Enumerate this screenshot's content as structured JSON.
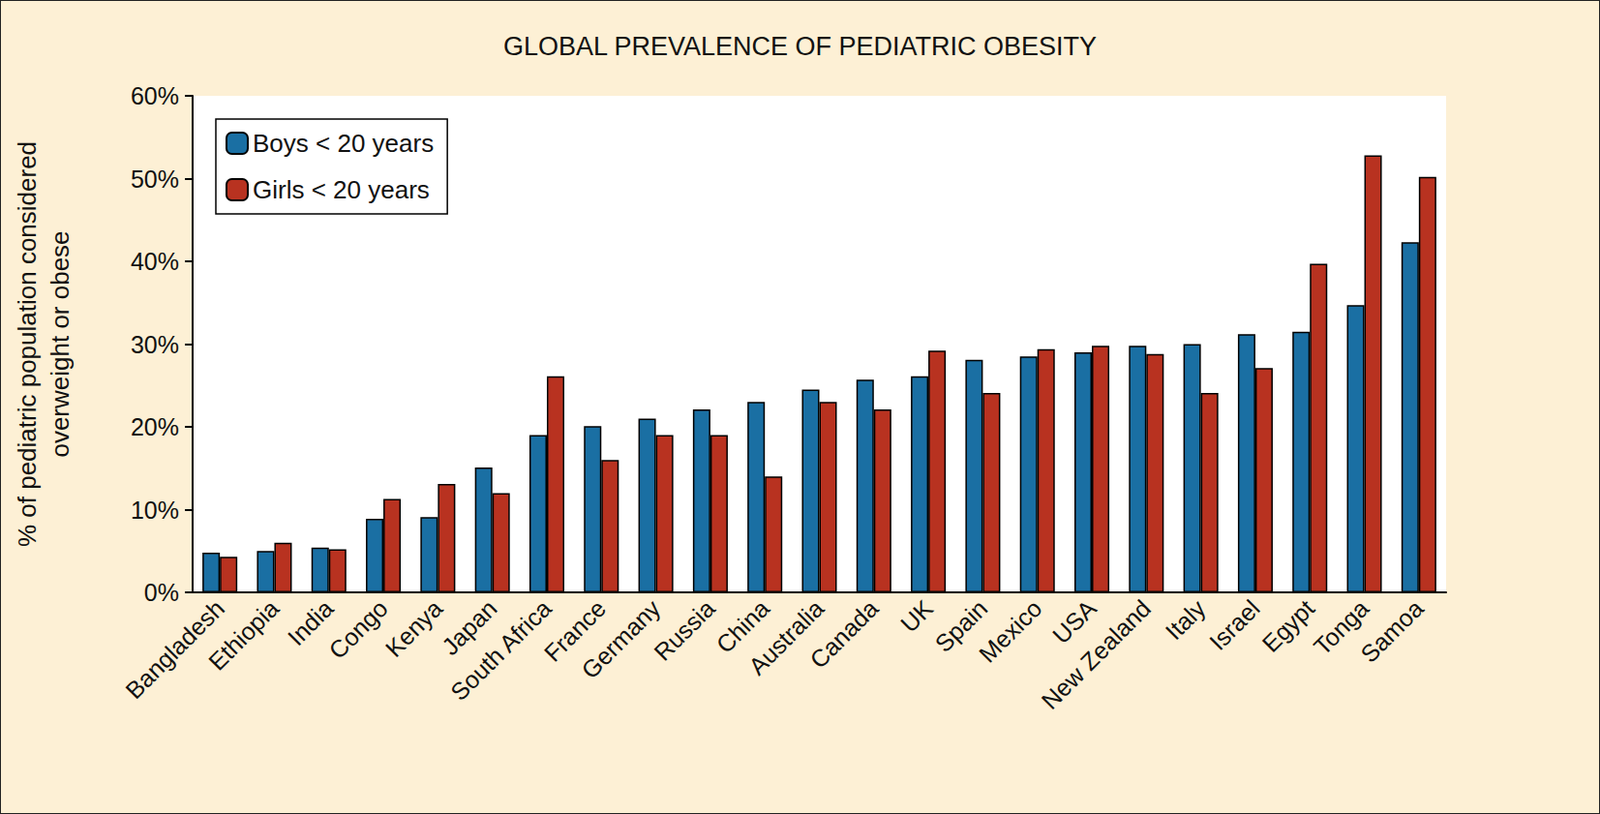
{
  "chart_data": {
    "type": "bar",
    "title": "GLOBAL PREVALENCE OF PEDIATRIC OBESITY",
    "y_label": "% of pediatric population considered\noverweight or obese",
    "categories": [
      "Bangladesh",
      "Ethiopia",
      "India",
      "Congo",
      "Kenya",
      "Japan",
      "South Africa",
      "France",
      "Germany",
      "Russia",
      "China",
      "Australia",
      "Canada",
      "UK",
      "Spain",
      "Mexico",
      "USA",
      "New Zealand",
      "Italy",
      "Israel",
      "Egypt",
      "Tonga",
      "Samoa"
    ],
    "series": [
      {
        "name": "Boys < 20 years",
        "color": "#1a6fa3",
        "values": [
          4.8,
          5.0,
          5.4,
          8.9,
          9.1,
          15.1,
          19.0,
          20.1,
          21.0,
          22.1,
          23.0,
          24.5,
          25.7,
          26.1,
          28.1,
          28.5,
          29.0,
          29.8,
          30.0,
          31.2,
          31.5,
          34.7,
          42.3
        ]
      },
      {
        "name": "Girls < 20 years",
        "color": "#b83220",
        "values": [
          4.3,
          6.0,
          5.2,
          11.3,
          13.1,
          12.0,
          26.1,
          16.0,
          19.0,
          19.0,
          14.0,
          23.0,
          22.1,
          29.2,
          24.1,
          29.4,
          29.8,
          28.8,
          24.1,
          27.1,
          39.7,
          52.8,
          50.2
        ]
      }
    ],
    "ylim": [
      0,
      60
    ],
    "yticks": [
      {
        "value": 0,
        "label": "0%"
      },
      {
        "value": 10,
        "label": "10%"
      },
      {
        "value": 20,
        "label": "20%"
      },
      {
        "value": 30,
        "label": "30%"
      },
      {
        "value": 40,
        "label": "40%"
      },
      {
        "value": 50,
        "label": "50%"
      },
      {
        "value": 60,
        "label": "60%"
      }
    ],
    "grid": false,
    "legend": "upper left"
  }
}
